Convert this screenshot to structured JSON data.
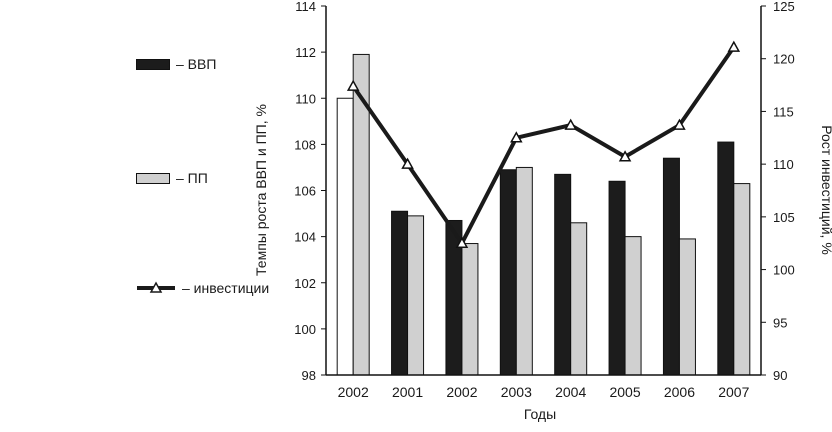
{
  "chart_data": {
    "type": "bar",
    "categories": [
      "2002",
      "2001",
      "2002",
      "2003",
      "2004",
      "2005",
      "2006",
      "2007"
    ],
    "series": [
      {
        "name": "ВВП",
        "kind": "bar",
        "axis": "left",
        "color": "#1c1c1c",
        "values": [
          110.0,
          105.1,
          104.7,
          106.9,
          106.7,
          106.4,
          107.4,
          108.1
        ]
      },
      {
        "name": "ПП",
        "kind": "bar",
        "axis": "left",
        "color": "#d0d0d0",
        "values": [
          111.9,
          104.9,
          103.7,
          107.0,
          104.6,
          104.0,
          103.9,
          106.3
        ]
      },
      {
        "name": "инвестиции",
        "kind": "line",
        "axis": "right",
        "color": "#1a1a1a",
        "values": [
          117.4,
          110.0,
          102.5,
          112.5,
          113.7,
          110.7,
          113.7,
          121.1
        ]
      }
    ],
    "first_bar_color": "#ffffff",
    "xlabel": "Годы",
    "ylabel_left": "Темпы роста ВВП и ПП, %",
    "ylabel_right": "Рост инвестиций, %",
    "ylim_left": [
      98,
      114
    ],
    "ylim_right": [
      90,
      125
    ],
    "yticks_left": [
      98,
      100,
      102,
      104,
      106,
      108,
      110,
      112,
      114
    ],
    "yticks_right": [
      90,
      95,
      100,
      105,
      110,
      115,
      120,
      125
    ],
    "grid": false,
    "legend_position": "left"
  },
  "legend": {
    "gdp_label": "– ВВП",
    "pp_label": "– ПП",
    "investment_label": "– инвестиции"
  }
}
